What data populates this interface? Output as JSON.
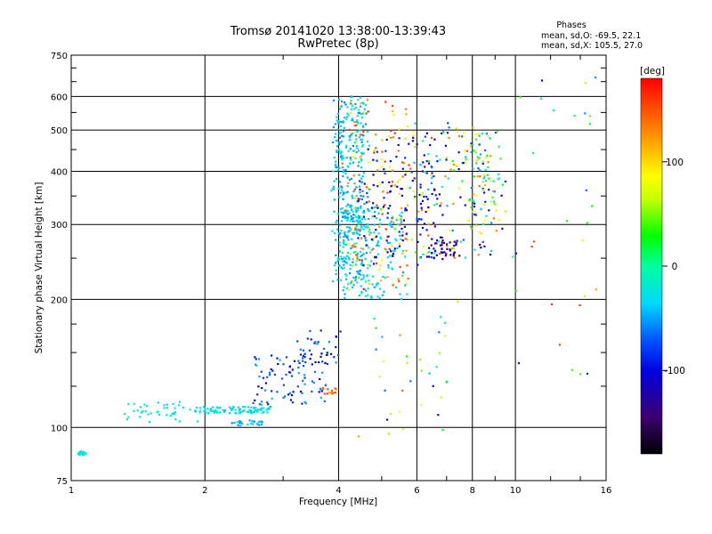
{
  "header": {
    "title_line1": "Tromsø 20141020 13:38:00-13:39:43",
    "title_line2": "RwPretec (8p)",
    "stats_title": "Phases",
    "stats_o": "mean, sd,O: -69.5, 22.1",
    "stats_x": "mean, sd,X: 105.5, 27.0"
  },
  "chart_data": {
    "type": "scatter",
    "xlabel": "Frequency [MHz]",
    "ylabel": "Stationary phase Virtual Height [km]",
    "xscale": "log",
    "yscale": "log",
    "xlim": [
      1,
      16
    ],
    "ylim": [
      75,
      750
    ],
    "x_ticks": [
      1,
      2,
      4,
      6,
      8,
      10,
      16
    ],
    "x_tick_labels": [
      "1",
      "2",
      "4",
      "6",
      "8",
      "10",
      "16"
    ],
    "y_ticks": [
      75,
      100,
      200,
      300,
      400,
      500,
      600,
      750
    ],
    "y_tick_labels": [
      "75",
      "100",
      "200",
      "300",
      "400",
      "500",
      "600",
      "750"
    ],
    "grid": true,
    "colorbar": {
      "label": "[deg]",
      "range": [
        -180,
        180
      ],
      "ticks": [
        100,
        0,
        -100
      ],
      "tick_labels": [
        "100",
        "0",
        "-100"
      ]
    },
    "clusters": [
      {
        "f0": 1.03,
        "f1": 1.08,
        "h0": 86,
        "h1": 88,
        "phase": [
          -30,
          -10
        ],
        "n": 18,
        "jitter": 0.01
      },
      {
        "f0": 1.3,
        "f1": 1.95,
        "h0": 103,
        "h1": 115,
        "phase": [
          -40,
          -10
        ],
        "n": 40,
        "jitter": 0.03
      },
      {
        "f0": 1.9,
        "f1": 2.8,
        "h0": 108,
        "h1": 112,
        "phase": [
          -45,
          -15
        ],
        "n": 95,
        "jitter": 0.018
      },
      {
        "f0": 2.3,
        "f1": 2.7,
        "h0": 101,
        "h1": 104,
        "phase": [
          -60,
          -30
        ],
        "n": 25,
        "jitter": 0.015
      },
      {
        "f0": 2.6,
        "f1": 3.8,
        "h0": 112,
        "h1": 150,
        "phase": [
          -110,
          -40
        ],
        "n": 90,
        "jitter": 0.04
      },
      {
        "f0": 3.2,
        "f1": 4.0,
        "h0": 140,
        "h1": 170,
        "phase": [
          -120,
          -50
        ],
        "n": 35,
        "jitter": 0.04
      },
      {
        "f0": 3.7,
        "f1": 3.95,
        "h0": 120,
        "h1": 124,
        "phase": [
          130,
          160
        ],
        "n": 14,
        "jitter": 0.015
      },
      {
        "f0": 3.9,
        "f1": 4.6,
        "h0": 220,
        "h1": 600,
        "phase": [
          -60,
          -20
        ],
        "n": 360,
        "jitter": 0.05
      },
      {
        "f0": 4.0,
        "f1": 5.6,
        "h0": 200,
        "h1": 330,
        "phase": [
          -50,
          -15
        ],
        "n": 200,
        "jitter": 0.04
      },
      {
        "f0": 4.2,
        "f1": 5.8,
        "h0": 210,
        "h1": 600,
        "phase": [
          60,
          170
        ],
        "n": 150,
        "jitter": 0.08
      },
      {
        "f0": 4.5,
        "f1": 6.8,
        "h0": 240,
        "h1": 480,
        "phase": [
          -130,
          -80
        ],
        "n": 120,
        "jitter": 0.08
      },
      {
        "f0": 5.8,
        "f1": 9.2,
        "h0": 250,
        "h1": 520,
        "phase": [
          -130,
          150
        ],
        "n": 170,
        "jitter": 0.09
      },
      {
        "f0": 6.4,
        "f1": 7.4,
        "h0": 250,
        "h1": 280,
        "phase": [
          -140,
          -110
        ],
        "n": 40,
        "jitter": 0.03
      },
      {
        "f0": 8.0,
        "f1": 9.3,
        "h0": 300,
        "h1": 500,
        "phase": [
          -100,
          120
        ],
        "n": 55,
        "jitter": 0.05
      },
      {
        "f0": 10.2,
        "f1": 15.5,
        "h0": 120,
        "h1": 680,
        "phase": [
          -120,
          170
        ],
        "n": 30,
        "jitter": 0.12
      },
      {
        "f0": 4.3,
        "f1": 7.2,
        "h0": 95,
        "h1": 200,
        "phase": [
          -120,
          150
        ],
        "n": 35,
        "jitter": 0.1
      }
    ]
  }
}
